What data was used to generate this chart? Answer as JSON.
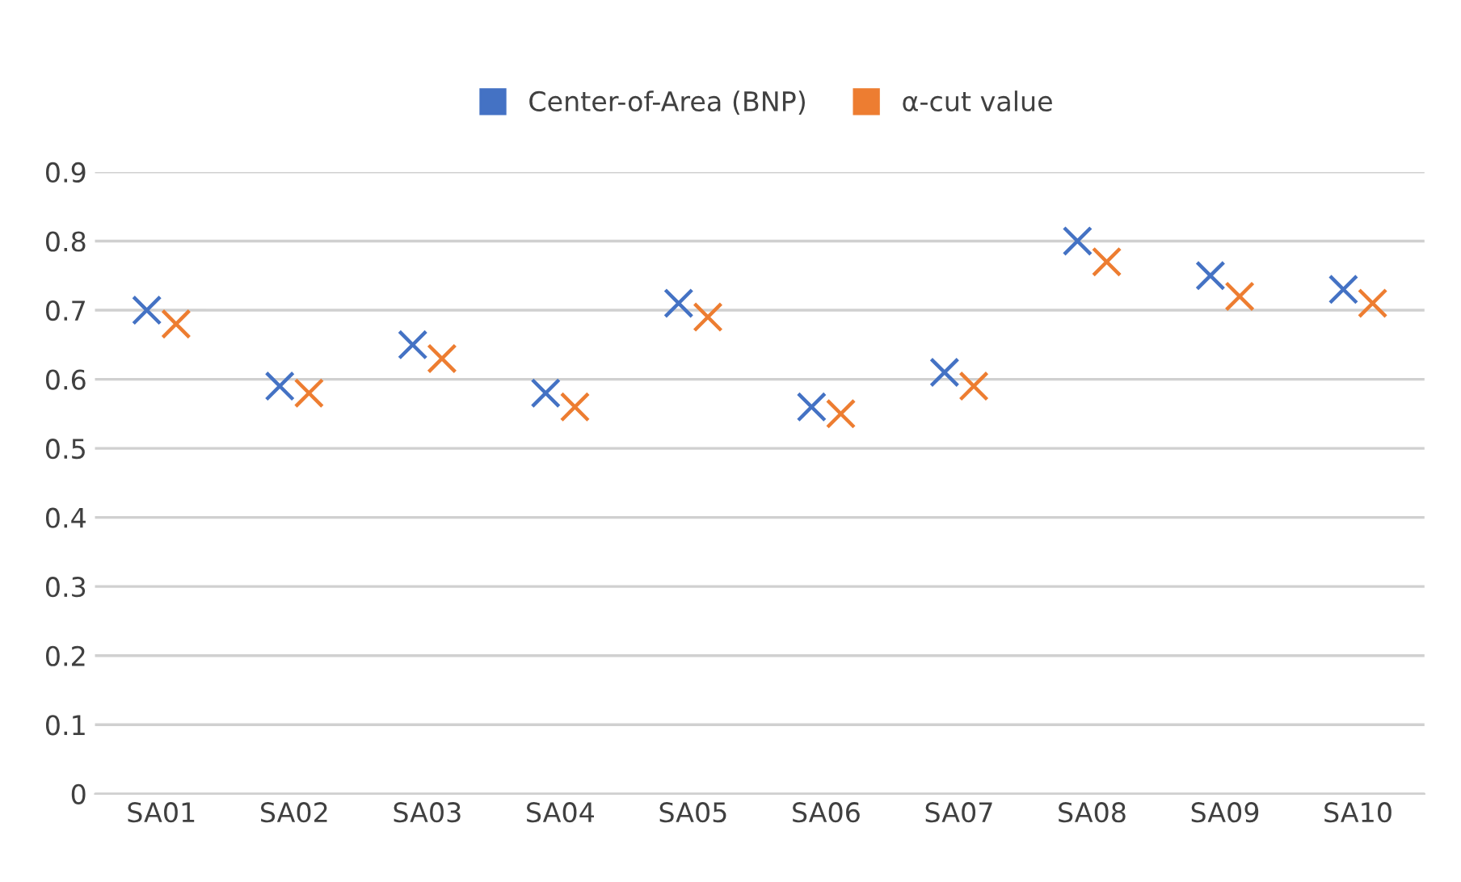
{
  "chart_data": {
    "type": "scatter",
    "categories": [
      "SA01",
      "SA02",
      "SA03",
      "SA04",
      "SA05",
      "SA06",
      "SA07",
      "SA08",
      "SA09",
      "SA10"
    ],
    "series": [
      {
        "name": "Center-of-Area (BNP)",
        "color": "#4472c4",
        "values": [
          0.7,
          0.59,
          0.65,
          0.58,
          0.71,
          0.56,
          0.61,
          0.8,
          0.75,
          0.73
        ]
      },
      {
        "name": "α-cut value",
        "color": "#ed7d31",
        "values": [
          0.68,
          0.58,
          0.63,
          0.56,
          0.69,
          0.55,
          0.59,
          0.77,
          0.72,
          0.71
        ]
      }
    ],
    "ylim": [
      0,
      0.9
    ],
    "yticks": [
      0,
      0.1,
      0.2,
      0.3,
      0.4,
      0.5,
      0.6,
      0.7,
      0.8,
      0.9
    ],
    "grid": "y",
    "legend": "top",
    "marker": "cross"
  }
}
